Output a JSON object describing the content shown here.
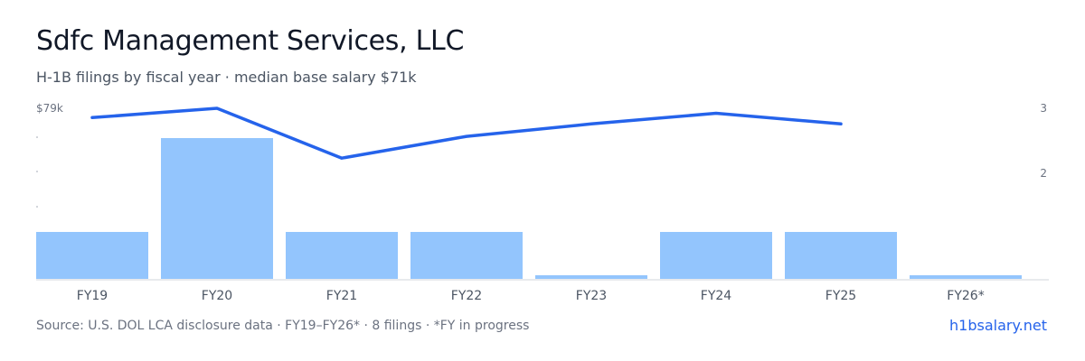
{
  "header": {
    "title": "Sdfc Management Services, LLC",
    "subtitle": "H-1B filings by fiscal year · median base salary $71k"
  },
  "footer": {
    "source": "Source: U.S. DOL LCA disclosure data · FY19–FY26* · 8 filings · *FY in progress",
    "brand": "h1bsalary.net"
  },
  "colors": {
    "bar": "#93c5fd",
    "line": "#2563eb",
    "axis": "#d1d5db",
    "tick": "#6b7280"
  },
  "chart_data": {
    "type": "bar",
    "categories": [
      "FY19",
      "FY20",
      "FY21",
      "FY22",
      "FY23",
      "FY24",
      "FY25",
      "FY26*"
    ],
    "series": [
      {
        "type": "bar",
        "axis": "right",
        "values": [
          1,
          3,
          1,
          1,
          0,
          1,
          1,
          0
        ]
      },
      {
        "type": "line",
        "axis": "left",
        "values": [
          77.5,
          79,
          71,
          74.5,
          76.5,
          78.2,
          76.5,
          null
        ]
      }
    ],
    "left_axis": {
      "tick_label": "$79k",
      "tick_value": 79
    },
    "right_axis": {
      "tick_labels": [
        "2",
        "3"
      ],
      "tick_values": [
        2,
        3
      ]
    },
    "grid": false
  }
}
